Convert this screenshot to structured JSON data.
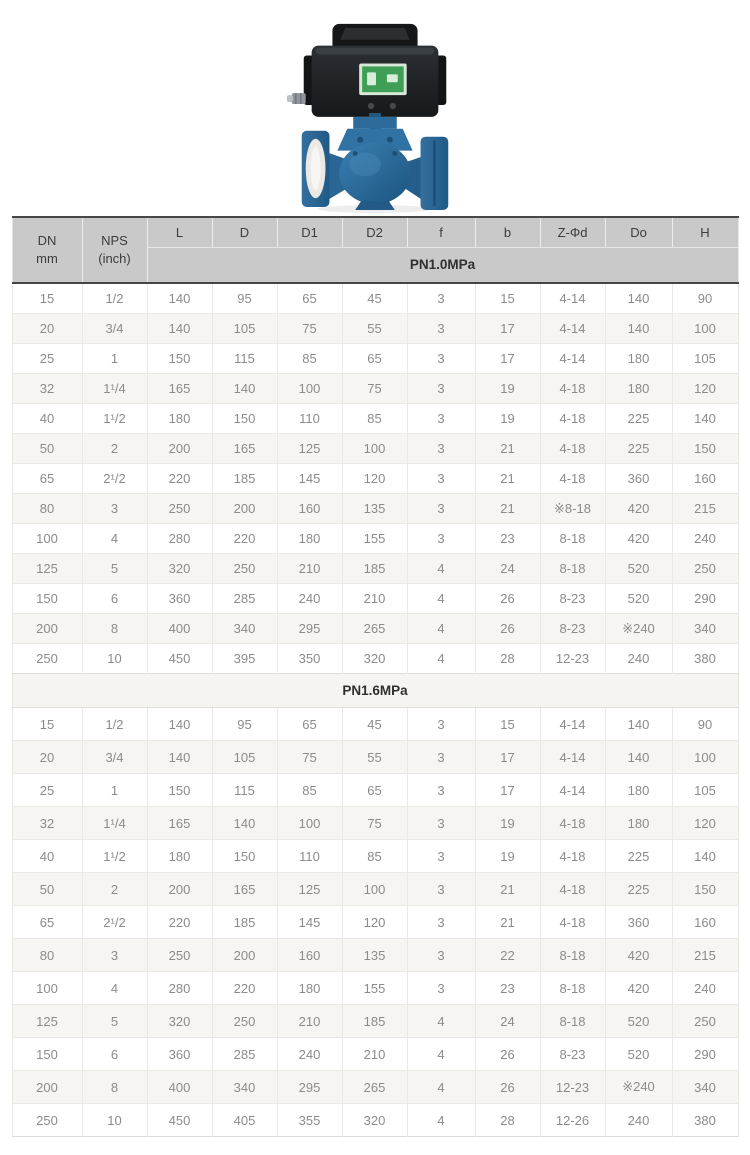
{
  "product_image": {
    "name": "electric-actuated-flanged-ball-valve",
    "actuator_color": "#1d2023",
    "display_color": "#3f9e56",
    "body_color": "#2d6f9f",
    "flange_face_color": "#eae9e5"
  },
  "table": {
    "header": {
      "col_dn": {
        "line1": "DN",
        "line2": "mm"
      },
      "col_nps": {
        "line1": "NPS",
        "line2": "(inch)"
      },
      "dim_labels": [
        "L",
        "D",
        "D1",
        "D2",
        "f",
        "b",
        "Z-Φd",
        "Do",
        "H"
      ]
    },
    "column_keys": [
      "dn-mm",
      "nps-inch",
      "l",
      "d",
      "d1",
      "d2",
      "f",
      "b",
      "z-phi-d",
      "do",
      "h"
    ],
    "sections": [
      {
        "label": "PN1.0MPa",
        "rows": [
          [
            "15",
            "1/2",
            "140",
            "95",
            "65",
            "45",
            "3",
            "15",
            "4-14",
            "140",
            "90"
          ],
          [
            "20",
            "3/4",
            "140",
            "105",
            "75",
            "55",
            "3",
            "17",
            "4-14",
            "140",
            "100"
          ],
          [
            "25",
            "1",
            "150",
            "115",
            "85",
            "65",
            "3",
            "17",
            "4-14",
            "180",
            "105"
          ],
          [
            "32",
            "1¹/4",
            "165",
            "140",
            "100",
            "75",
            "3",
            "19",
            "4-18",
            "180",
            "120"
          ],
          [
            "40",
            "1¹/2",
            "180",
            "150",
            "110",
            "85",
            "3",
            "19",
            "4-18",
            "225",
            "140"
          ],
          [
            "50",
            "2",
            "200",
            "165",
            "125",
            "100",
            "3",
            "21",
            "4-18",
            "225",
            "150"
          ],
          [
            "65",
            "2¹/2",
            "220",
            "185",
            "145",
            "120",
            "3",
            "21",
            "4-18",
            "360",
            "160"
          ],
          [
            "80",
            "3",
            "250",
            "200",
            "160",
            "135",
            "3",
            "21",
            "※8-18",
            "420",
            "215"
          ],
          [
            "100",
            "4",
            "280",
            "220",
            "180",
            "155",
            "3",
            "23",
            "8-18",
            "420",
            "240"
          ],
          [
            "125",
            "5",
            "320",
            "250",
            "210",
            "185",
            "4",
            "24",
            "8-18",
            "520",
            "250"
          ],
          [
            "150",
            "6",
            "360",
            "285",
            "240",
            "210",
            "4",
            "26",
            "8-23",
            "520",
            "290"
          ],
          [
            "200",
            "8",
            "400",
            "340",
            "295",
            "265",
            "4",
            "26",
            "8-23",
            "※240",
            "340"
          ],
          [
            "250",
            "10",
            "450",
            "395",
            "350",
            "320",
            "4",
            "28",
            "12-23",
            "240",
            "380"
          ]
        ]
      },
      {
        "label": "PN1.6MPa",
        "rows": [
          [
            "15",
            "1/2",
            "140",
            "95",
            "65",
            "45",
            "3",
            "15",
            "4-14",
            "140",
            "90"
          ],
          [
            "20",
            "3/4",
            "140",
            "105",
            "75",
            "55",
            "3",
            "17",
            "4-14",
            "140",
            "100"
          ],
          [
            "25",
            "1",
            "150",
            "115",
            "85",
            "65",
            "3",
            "17",
            "4-14",
            "180",
            "105"
          ],
          [
            "32",
            "1¹/4",
            "165",
            "140",
            "100",
            "75",
            "3",
            "19",
            "4-18",
            "180",
            "120"
          ],
          [
            "40",
            "1¹/2",
            "180",
            "150",
            "110",
            "85",
            "3",
            "19",
            "4-18",
            "225",
            "140"
          ],
          [
            "50",
            "2",
            "200",
            "165",
            "125",
            "100",
            "3",
            "21",
            "4-18",
            "225",
            "150"
          ],
          [
            "65",
            "2¹/2",
            "220",
            "185",
            "145",
            "120",
            "3",
            "21",
            "4-18",
            "360",
            "160"
          ],
          [
            "80",
            "3",
            "250",
            "200",
            "160",
            "135",
            "3",
            "22",
            "8-18",
            "420",
            "215"
          ],
          [
            "100",
            "4",
            "280",
            "220",
            "180",
            "155",
            "3",
            "23",
            "8-18",
            "420",
            "240"
          ],
          [
            "125",
            "5",
            "320",
            "250",
            "210",
            "185",
            "4",
            "24",
            "8-18",
            "520",
            "250"
          ],
          [
            "150",
            "6",
            "360",
            "285",
            "240",
            "210",
            "4",
            "26",
            "8-23",
            "520",
            "290"
          ],
          [
            "200",
            "8",
            "400",
            "340",
            "295",
            "265",
            "4",
            "26",
            "12-23",
            "※240",
            "340"
          ],
          [
            "250",
            "10",
            "450",
            "405",
            "355",
            "320",
            "4",
            "28",
            "12-26",
            "240",
            "380"
          ]
        ]
      }
    ]
  }
}
